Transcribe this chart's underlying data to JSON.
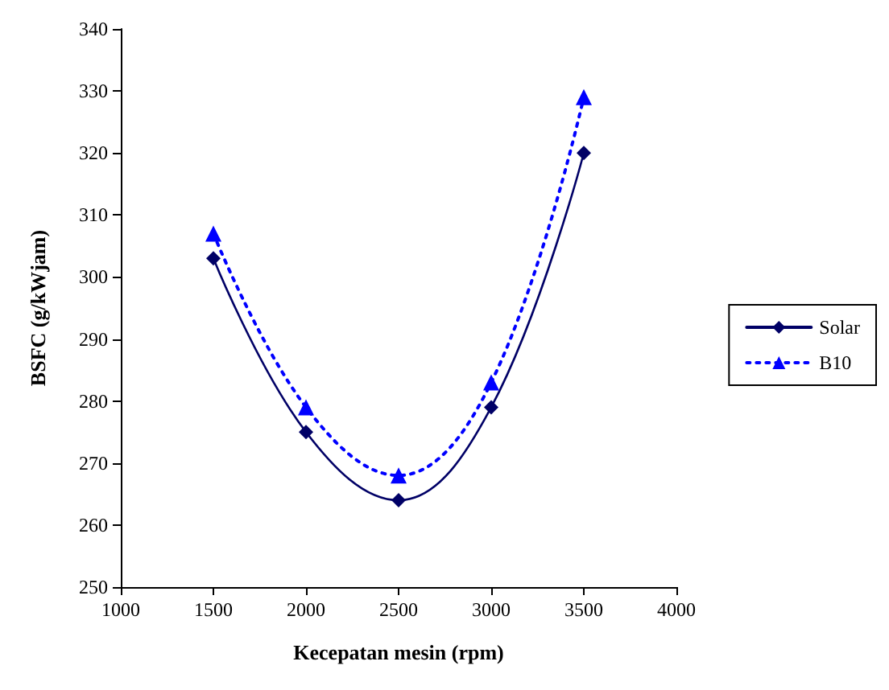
{
  "chart_data": {
    "type": "line",
    "xlabel": "Kecepatan mesin (rpm)",
    "ylabel": "BSFC (g/kWjam)",
    "x": [
      1500,
      2000,
      2500,
      3000,
      3500
    ],
    "series": [
      {
        "name": "Solar",
        "color": "#000066",
        "values": [
          303,
          275,
          264,
          279,
          320
        ],
        "marker": "diamond",
        "line_style": "solid"
      },
      {
        "name": "B10",
        "color": "#0000ff",
        "values": [
          307,
          279,
          268,
          283,
          329
        ],
        "marker": "triangle",
        "line_style": "dotted"
      }
    ],
    "xlim": [
      1000,
      4000
    ],
    "xticks": [
      1000,
      1500,
      2000,
      2500,
      3000,
      3500,
      4000
    ],
    "ylim": [
      250,
      340
    ],
    "yticks": [
      250,
      260,
      270,
      280,
      290,
      300,
      310,
      320,
      330,
      340
    ],
    "grid": false,
    "legend": "right"
  }
}
